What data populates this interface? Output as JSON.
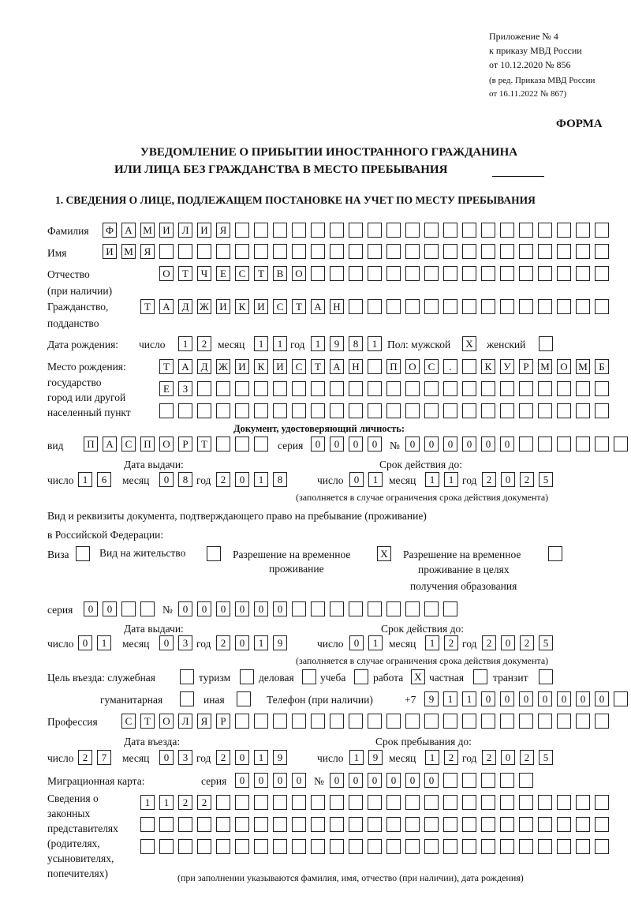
{
  "header": {
    "appendix": "Приложение № 4",
    "order": "к приказу МВД России",
    "order_date": "от 10.12.2020 № 856",
    "revision1": "(в ред. Приказа МВД России",
    "revision2": "от 16.11.2022 № 867)",
    "form_label": "ФОРМА",
    "title1": "УВЕДОМЛЕНИЕ О ПРИБЫТИИ ИНОСТРАННОГО ГРАЖДАНИНА",
    "title2": "ИЛИ ЛИЦА БЕЗ ГРАЖДАНСТВА В МЕСТО ПРЕБЫВАНИЯ",
    "section1": "1. СВЕДЕНИЯ О ЛИЦЕ, ПОДЛЕЖАЩЕМ ПОСТАНОВКЕ НА УЧЕТ ПО МЕСТУ ПРЕБЫВАНИЯ"
  },
  "labels": {
    "surname": "Фамилия",
    "name": "Имя",
    "patronymic": "Отчество",
    "patronymic_note": "(при наличии)",
    "citizenship": "Гражданство,",
    "citizenship2": "подданство",
    "birth_date": "Дата рождения:",
    "day": "число",
    "month": "месяц",
    "year": "год",
    "sex": "Пол: мужской",
    "female": "женский",
    "birth_place": "Место рождения:",
    "birth_place2": "государство",
    "birth_place3": "город или другой",
    "birth_place4": "населенный пункт",
    "id_doc": "Документ, удостоверяющий личность:",
    "kind": "вид",
    "series": "серия",
    "number": "№",
    "issue_date": "Дата выдачи:",
    "valid_until": "Срок действия до:",
    "validity_note": "(заполняется в случае ограничения срока действия документа)",
    "right_doc1": "Вид и реквизиты документа, подтверждающего право на пребывание (проживание)",
    "right_doc2": "в Российской Федерации:",
    "visa": "Виза",
    "residence": "Вид на жительство",
    "temp_res1": "Разрешение на временное",
    "temp_res2": "проживание",
    "temp_edu1": "Разрешение на временное",
    "temp_edu2": "проживание в целях",
    "temp_edu3": "получения образования",
    "purpose": "Цель въезда: служебная",
    "tourism": "туризм",
    "business": "деловая",
    "study": "учеба",
    "work": "работа",
    "private": "частная",
    "transit": "транзит",
    "humanitarian": "гуманитарная",
    "other": "иная",
    "phone": "Телефон (при наличии)",
    "phone_prefix": "+7",
    "profession": "Профессия",
    "entry_date": "Дата въезда:",
    "stay_until": "Срок пребывания до:",
    "migration_card": "Миграционная карта:",
    "reps1": "Сведения о",
    "reps2": "законных",
    "reps3": "представителях",
    "reps4": "(родителях,",
    "reps5": "усыновителях,",
    "reps6": "попечителях)",
    "reps_note": "(при заполнении указываются фамилия, имя, отчество (при наличии), дата рождения)"
  },
  "fields": {
    "surname": "ФАМИЛИЯ",
    "name": "ИМЯ",
    "patronymic": "ОТЧЕСТВО",
    "citizenship": "ТАДЖИКИСТАН",
    "birth_day": "12",
    "birth_month": "11",
    "birth_year": "1981",
    "sex_male": "X",
    "sex_female": "",
    "birth_place_1": "ТАДЖИКИСТАН ПОС. КУРМОМБ",
    "birth_place_2": "ЕЗ",
    "birth_place_3": "",
    "doc_kind": "ПАСПОРТ",
    "doc_series": "0000",
    "doc_number": "000000",
    "doc_issue_day": "16",
    "doc_issue_month": "08",
    "doc_issue_year": "2018",
    "doc_valid_day": "01",
    "doc_valid_month": "11",
    "doc_valid_year": "2025",
    "visa": "",
    "residence": "",
    "temp_res": "X",
    "temp_edu": "",
    "right_series": "00",
    "right_number": "000000",
    "right_issue_day": "01",
    "right_issue_month": "03",
    "right_issue_year": "2019",
    "right_valid_day": "01",
    "right_valid_month": "12",
    "right_valid_year": "2025",
    "p_service": "",
    "p_tourism": "",
    "p_business": "",
    "p_study": "",
    "p_work": "X",
    "p_private": "",
    "p_transit": "",
    "p_humanitarian": "",
    "p_other": "",
    "phone": "9110000000",
    "profession": "СТОЛЯР",
    "entry_day": "27",
    "entry_month": "03",
    "entry_year": "2019",
    "stay_day": "19",
    "stay_month": "12",
    "stay_year": "2025",
    "mc_series": "0000",
    "mc_number": "000000",
    "reps_1": "1122",
    "reps_2": "",
    "reps_3": ""
  }
}
